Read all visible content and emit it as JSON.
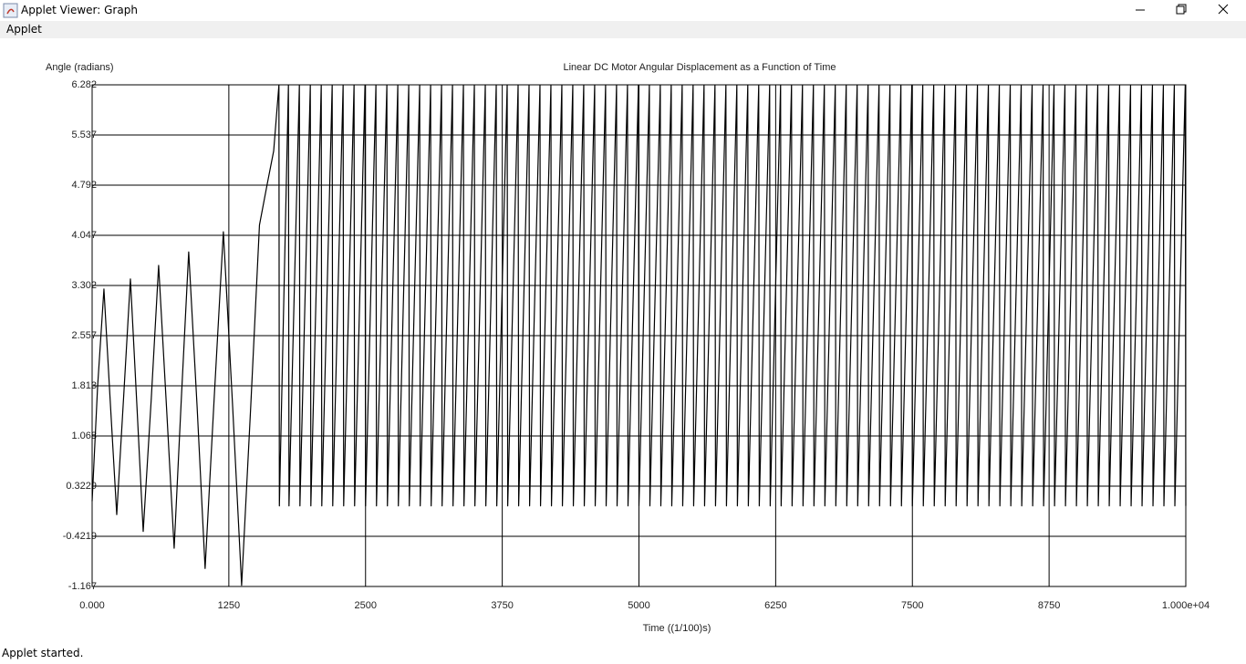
{
  "window": {
    "title": "Applet Viewer: Graph",
    "menu": [
      "Applet"
    ],
    "status": "Applet started."
  },
  "chart_data": {
    "type": "line",
    "title": "Linear DC Motor Angular Displacement as a Function of Time",
    "x_label": "Time ((1/100)s)",
    "y_label": "Angle (radians)",
    "xlim": [
      0,
      10000
    ],
    "ylim": [
      -1.167,
      6.282
    ],
    "xticks": [
      {
        "value": 0,
        "label": "0.000"
      },
      1250,
      2500,
      3750,
      5000,
      6250,
      7500,
      8750,
      {
        "value": 10000,
        "label": "1.000e+04"
      }
    ],
    "yticks": [
      -1.167,
      -0.4219,
      0.3229,
      1.068,
      1.813,
      2.557,
      3.302,
      4.047,
      4.792,
      5.537,
      6.282
    ],
    "grid": true,
    "series": [
      {
        "color": "#000000",
        "x": [
          0,
          50,
          108,
          165,
          225,
          290,
          350,
          410,
          467,
          540,
          608,
          680,
          750,
          815,
          883,
          960,
          1033,
          1115,
          1200,
          1285,
          1367,
          1450,
          1530,
          1600,
          1660,
          1708,
          1712,
          1795,
          1800,
          1895,
          1900,
          1995,
          2000,
          2095,
          2100,
          2195,
          2200,
          2295,
          2300,
          2395,
          2400,
          2495,
          2500,
          2595,
          2600,
          2695,
          2700,
          2795,
          2800,
          2895,
          2900,
          2995,
          3000,
          3095,
          3100,
          3195,
          3200,
          3295,
          3300,
          3395,
          3400,
          3495,
          3500,
          3595,
          3600,
          3695,
          3700,
          3795,
          3800,
          3895,
          3900,
          3995,
          4000,
          4095,
          4100,
          4195,
          4200,
          4295,
          4300,
          4395,
          4400,
          4495,
          4500,
          4595,
          4600,
          4695,
          4700,
          4795,
          4800,
          4895,
          4900,
          4995,
          5000,
          5095,
          5100,
          5195,
          5200,
          5295,
          5300,
          5395,
          5400,
          5495,
          5500,
          5595,
          5600,
          5695,
          5700,
          5795,
          5800,
          5895,
          5900,
          5995,
          6000,
          6095,
          6100,
          6195,
          6200,
          6295,
          6300,
          6395,
          6400,
          6495,
          6500,
          6595,
          6600,
          6695,
          6700,
          6795,
          6800,
          6895,
          6900,
          6995,
          7000,
          7095,
          7100,
          7195,
          7200,
          7295,
          7300,
          7395,
          7400,
          7495,
          7500,
          7595,
          7600,
          7695,
          7700,
          7795,
          7800,
          7895,
          7900,
          7995,
          8000,
          8095,
          8100,
          8195,
          8200,
          8295,
          8300,
          8395,
          8400,
          8495,
          8500,
          8595,
          8600,
          8695,
          8700,
          8795,
          8800,
          8895,
          8900,
          8995,
          9000,
          9095,
          9100,
          9195,
          9200,
          9295,
          9300,
          9395,
          9400,
          9495,
          9500,
          9595,
          9600,
          9695,
          9700,
          9795,
          9800,
          9895,
          9900,
          9995,
          10000
        ],
        "values": [
          0.1,
          1.8,
          3.25,
          1.6,
          -0.1,
          1.7,
          3.4,
          1.5,
          -0.35,
          1.6,
          3.6,
          1.5,
          -0.6,
          1.6,
          3.8,
          1.5,
          -0.9,
          1.6,
          4.1,
          1.5,
          -1.15,
          1.5,
          4.2,
          4.8,
          5.3,
          6.28,
          0.03,
          6.28,
          0.03,
          6.28,
          0.03,
          6.28,
          0.03,
          6.28,
          0.03,
          6.28,
          0.03,
          6.28,
          0.03,
          6.28,
          0.03,
          6.28,
          0.03,
          6.28,
          0.03,
          6.28,
          0.03,
          6.28,
          0.03,
          6.28,
          0.03,
          6.28,
          0.03,
          6.28,
          0.03,
          6.28,
          0.03,
          6.28,
          0.03,
          6.28,
          0.03,
          6.28,
          0.03,
          6.28,
          0.03,
          6.28,
          0.03,
          6.28,
          0.03,
          6.28,
          0.03,
          6.28,
          0.03,
          6.28,
          0.03,
          6.28,
          0.03,
          6.28,
          0.03,
          6.28,
          0.03,
          6.28,
          0.03,
          6.28,
          0.03,
          6.28,
          0.03,
          6.28,
          0.03,
          6.28,
          0.03,
          6.28,
          0.03,
          6.28,
          0.03,
          6.28,
          0.03,
          6.28,
          0.03,
          6.28,
          0.03,
          6.28,
          0.03,
          6.28,
          0.03,
          6.28,
          0.03,
          6.28,
          0.03,
          6.28,
          0.03,
          6.28,
          0.03,
          6.28,
          0.03,
          6.28,
          0.03,
          6.28,
          0.03,
          6.28,
          0.03,
          6.28,
          0.03,
          6.28,
          0.03,
          6.28,
          0.03,
          6.28,
          0.03,
          6.28,
          0.03,
          6.28,
          0.03,
          6.28,
          0.03,
          6.28,
          0.03,
          6.28,
          0.03,
          6.28,
          0.03,
          6.28,
          0.03,
          6.28,
          0.03,
          6.28,
          0.03,
          6.28,
          0.03,
          6.28,
          0.03,
          6.28,
          0.03,
          6.28,
          0.03,
          6.28,
          0.03,
          6.28,
          0.03,
          6.28,
          0.03,
          6.28,
          0.03,
          6.28,
          0.03,
          6.28,
          0.03,
          6.28,
          0.03,
          6.28,
          0.03,
          6.28,
          0.03,
          6.28,
          0.03,
          6.28,
          0.03,
          6.28,
          0.03,
          6.28,
          0.03,
          6.28,
          0.03,
          6.28,
          0.03,
          6.28,
          0.03,
          6.28,
          0.03,
          6.28,
          0.03,
          6.28,
          0.03
        ]
      }
    ]
  }
}
